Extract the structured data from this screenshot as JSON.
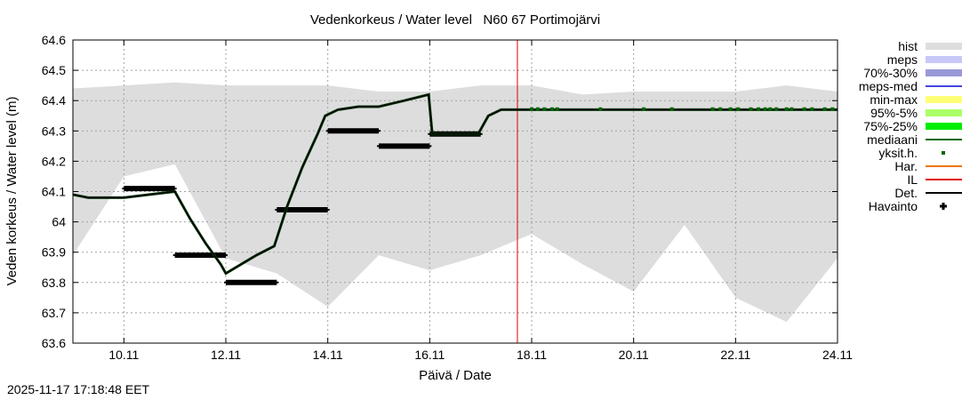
{
  "timestamp": "2025-11-17 17:18:48 EET",
  "chart_data": {
    "type": "line",
    "title": "Vedenkorkeus / Water level   N60 67 Portimojärvi",
    "xlabel": "Päivä / Date",
    "ylabel": "Veden korkeus / Water level (m)",
    "ylim": [
      63.6,
      64.6
    ],
    "xlim_days": [
      9.0,
      24.0
    ],
    "x_ticks": [
      "10.11",
      "12.11",
      "14.11",
      "16.11",
      "18.11",
      "20.11",
      "22.11",
      "24.11"
    ],
    "x_tick_days": [
      10,
      12,
      14,
      16,
      18,
      20,
      22,
      24
    ],
    "y_ticks": [
      "63.6",
      "63.7",
      "63.8",
      "63.9",
      "64",
      "64.1",
      "64.2",
      "64.3",
      "64.4",
      "64.5",
      "64.6"
    ],
    "y_tick_values": [
      63.6,
      63.7,
      63.8,
      63.9,
      64.0,
      64.1,
      64.2,
      64.3,
      64.4,
      64.5,
      64.6
    ],
    "grid": true,
    "now_line_day": 17.72,
    "legend_position": "right",
    "legend": [
      {
        "label": "hist",
        "kind": "band",
        "color": "#dddddd"
      },
      {
        "label": "meps",
        "kind": "band",
        "color": "#c8c8f8"
      },
      {
        "label": "70%-30%",
        "kind": "band",
        "color": "#9999d8"
      },
      {
        "label": "meps-med",
        "kind": "line",
        "color": "#4444dd"
      },
      {
        "label": "min-max",
        "kind": "band",
        "color": "#ffff77"
      },
      {
        "label": "95%-5%",
        "kind": "band",
        "color": "#aaff66"
      },
      {
        "label": "75%-25%",
        "kind": "band",
        "color": "#00ee00"
      },
      {
        "label": "mediaani",
        "kind": "line",
        "color": "#006600"
      },
      {
        "label": "yksit.h.",
        "kind": "point",
        "color": "#006600"
      },
      {
        "label": "Har.",
        "kind": "line",
        "color": "#ee7700"
      },
      {
        "label": "IL",
        "kind": "line",
        "color": "#dd0000"
      },
      {
        "label": "Det.",
        "kind": "line",
        "color": "#000000"
      },
      {
        "label": "Havainto",
        "kind": "marker",
        "color": "#000000"
      }
    ],
    "series": [
      {
        "name": "hist",
        "kind": "band",
        "days": [
          9.0,
          10.0,
          11.0,
          12.0,
          13.0,
          14.0,
          15.0,
          16.0,
          17.0,
          18.0,
          19.0,
          20.0,
          21.0,
          22.0,
          23.0,
          24.0
        ],
        "upper": [
          64.44,
          64.45,
          64.46,
          64.45,
          64.45,
          64.45,
          64.43,
          64.43,
          64.45,
          64.45,
          64.42,
          64.43,
          64.43,
          64.43,
          64.45,
          64.43
        ],
        "lower": [
          63.89,
          64.15,
          64.19,
          63.88,
          63.83,
          63.72,
          63.89,
          63.84,
          63.89,
          63.96,
          63.86,
          63.77,
          63.99,
          63.75,
          63.67,
          63.88
        ]
      },
      {
        "name": "Det.",
        "kind": "line",
        "days": [
          9.0,
          9.3,
          9.6,
          10.0,
          10.5,
          11.0,
          11.3,
          11.6,
          11.9,
          12.0,
          12.3,
          12.6,
          12.95,
          13.2,
          13.5,
          13.8,
          13.95,
          14.2,
          14.6,
          15.0,
          15.5,
          15.98,
          16.0,
          16.05,
          16.5,
          16.95,
          17.15,
          17.4,
          18.0,
          19.0,
          20.0,
          21.0,
          22.0,
          23.0,
          24.0
        ],
        "values": [
          64.09,
          64.08,
          64.08,
          64.08,
          64.09,
          64.1,
          64.01,
          63.93,
          63.86,
          63.83,
          63.86,
          63.89,
          63.92,
          64.05,
          64.18,
          64.29,
          64.35,
          64.37,
          64.38,
          64.38,
          64.4,
          64.42,
          64.38,
          64.29,
          64.29,
          64.29,
          64.35,
          64.37,
          64.37,
          64.37,
          64.37,
          64.37,
          64.37,
          64.37,
          64.37
        ]
      },
      {
        "name": "Havainto",
        "kind": "segments",
        "segments": [
          {
            "from_day": 10.0,
            "to_day": 11.0,
            "value": 64.11
          },
          {
            "from_day": 11.0,
            "to_day": 12.0,
            "value": 63.89
          },
          {
            "from_day": 12.0,
            "to_day": 13.0,
            "value": 63.8
          },
          {
            "from_day": 13.0,
            "to_day": 14.0,
            "value": 64.04
          },
          {
            "from_day": 14.0,
            "to_day": 15.0,
            "value": 64.3
          },
          {
            "from_day": 15.0,
            "to_day": 16.0,
            "value": 64.25
          },
          {
            "from_day": 16.0,
            "to_day": 17.0,
            "value": 64.29
          }
        ]
      },
      {
        "name": "yksit.h.",
        "kind": "points",
        "value": 64.372,
        "days": [
          18.0,
          18.12,
          18.25,
          18.4,
          18.5,
          19.35,
          20.2,
          20.75,
          21.55,
          21.7,
          21.9,
          22.05,
          22.3,
          22.45,
          22.58,
          22.68,
          22.8,
          23.0,
          23.1,
          23.35,
          23.5,
          23.75,
          23.9
        ]
      }
    ]
  }
}
